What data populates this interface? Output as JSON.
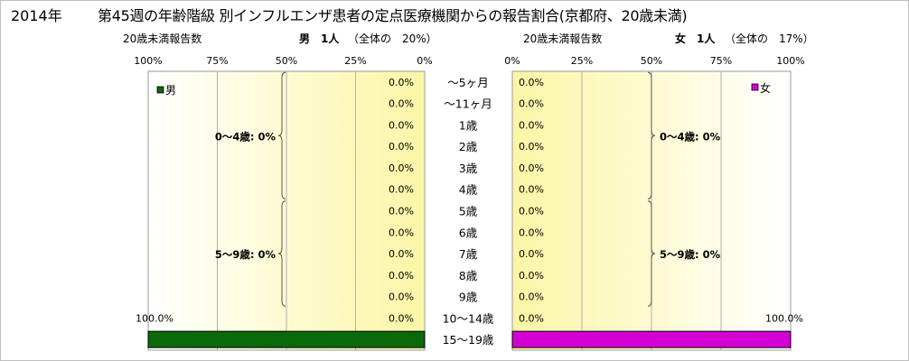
{
  "title": {
    "year": "2014年",
    "main": "第45週の年齢階級 別インフルエンザ患者の定点医療機関からの報告割合(京都府、20歳未満)"
  },
  "male_header": {
    "left": "20歳未満報告数",
    "count": "男　1人",
    "share": "（全体の　20%）"
  },
  "female_header": {
    "left": "20歳未満報告数",
    "count": "女　1人",
    "share": "（全体の　17%）"
  },
  "colors": {
    "male": "#0a6a0a",
    "female": "#d400d4"
  },
  "chart_data": [
    {
      "type": "bar",
      "orientation": "horizontal",
      "direction": "right-to-left",
      "legend": "男",
      "legend_position": "top-left",
      "xlim": [
        0,
        100
      ],
      "ticks": [
        "100%",
        "75%",
        "50%",
        "25%",
        "0%"
      ],
      "categories": [
        "～5ヶ月",
        "～11ヶ月",
        "1歳",
        "2歳",
        "3歳",
        "4歳",
        "5歳",
        "6歳",
        "7歳",
        "8歳",
        "9歳",
        "10～14歳",
        "15～19歳"
      ],
      "values": [
        0,
        0,
        0,
        0,
        0,
        0,
        0,
        0,
        0,
        0,
        0,
        0,
        100
      ],
      "labels": [
        "0.0%",
        "0.0%",
        "0.0%",
        "0.0%",
        "0.0%",
        "0.0%",
        "0.0%",
        "0.0%",
        "0.0%",
        "0.0%",
        "0.0%",
        "0.0%",
        "100.0%"
      ],
      "groups": [
        {
          "label": "0～4歳: 0%",
          "from": 0,
          "to": 5
        },
        {
          "label": "5～9歳: 0%",
          "from": 6,
          "to": 10
        }
      ],
      "grid": true
    },
    {
      "type": "bar",
      "orientation": "horizontal",
      "direction": "left-to-right",
      "legend": "女",
      "legend_position": "top-right",
      "xlim": [
        0,
        100
      ],
      "ticks": [
        "0%",
        "25%",
        "50%",
        "75%",
        "100%"
      ],
      "categories": [
        "～5ヶ月",
        "～11ヶ月",
        "1歳",
        "2歳",
        "3歳",
        "4歳",
        "5歳",
        "6歳",
        "7歳",
        "8歳",
        "9歳",
        "10～14歳",
        "15～19歳"
      ],
      "values": [
        0,
        0,
        0,
        0,
        0,
        0,
        0,
        0,
        0,
        0,
        0,
        0,
        100
      ],
      "labels": [
        "0.0%",
        "0.0%",
        "0.0%",
        "0.0%",
        "0.0%",
        "0.0%",
        "0.0%",
        "0.0%",
        "0.0%",
        "0.0%",
        "0.0%",
        "0.0%",
        "100.0%"
      ],
      "groups": [
        {
          "label": "0～4歳: 0%",
          "from": 0,
          "to": 5
        },
        {
          "label": "5～9歳: 0%",
          "from": 6,
          "to": 10
        }
      ],
      "grid": true
    }
  ]
}
